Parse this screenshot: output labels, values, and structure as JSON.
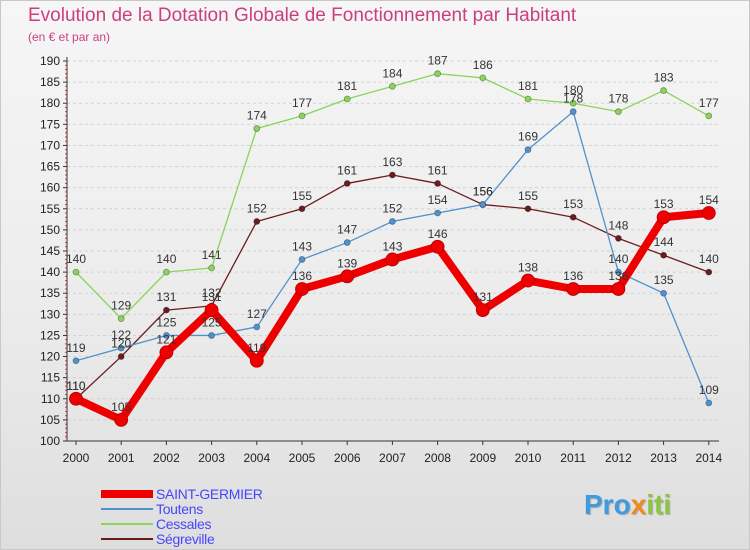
{
  "chart_data": {
    "type": "line",
    "title": "Evolution de la Dotation Globale de Fonctionnement par Habitant",
    "subtitle": "(en € et par an)",
    "xlabel": "",
    "ylabel": "",
    "categories": [
      "2000",
      "2001",
      "2002",
      "2003",
      "2004",
      "2005",
      "2006",
      "2007",
      "2008",
      "2009",
      "2010",
      "2011",
      "2012",
      "2013",
      "2014"
    ],
    "ylim": [
      100,
      190
    ],
    "yticks": [
      100,
      105,
      110,
      115,
      120,
      125,
      130,
      135,
      140,
      145,
      150,
      155,
      160,
      165,
      170,
      175,
      180,
      185,
      190
    ],
    "grid": "horizontal",
    "legend_position": "bottom-left",
    "series": [
      {
        "name": "SAINT-GERMIER",
        "color": "#ee0000",
        "values": [
          110,
          105,
          121,
          131,
          119,
          136,
          139,
          143,
          146,
          131,
          138,
          136,
          136,
          153,
          154
        ]
      },
      {
        "name": "Toutens",
        "color": "#4f92cf",
        "values": [
          119,
          122,
          125,
          125,
          127,
          143,
          147,
          152,
          154,
          156,
          169,
          178,
          140,
          135,
          109
        ]
      },
      {
        "name": "Cessales",
        "color": "#8ad45a",
        "values": [
          140,
          129,
          140,
          141,
          174,
          177,
          181,
          184,
          187,
          186,
          181,
          180,
          178,
          183,
          177
        ]
      },
      {
        "name": "Ségreville",
        "color": "#6b1d1d",
        "values": [
          110,
          120,
          131,
          132,
          152,
          155,
          161,
          163,
          161,
          156,
          155,
          153,
          148,
          144,
          140
        ]
      }
    ]
  },
  "brand": {
    "part1": "Pro",
    "part2": "x",
    "part3": "iti"
  }
}
